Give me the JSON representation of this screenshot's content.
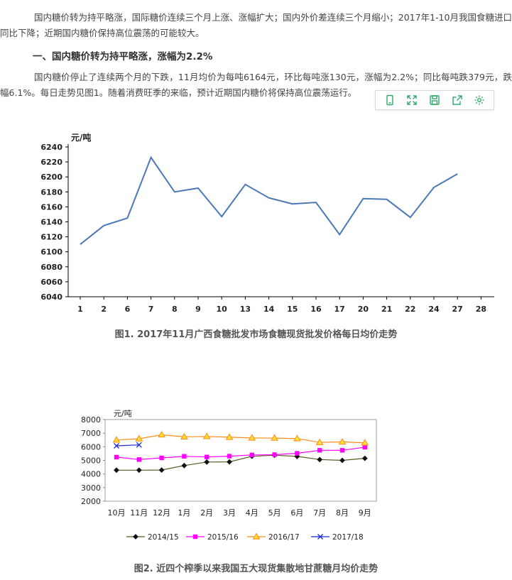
{
  "paragraphs": {
    "p1": "国内糖价转为持平略涨，国际糖价连续三个月上涨、涨幅扩大；国内外价差连续三个月缩小；2017年1-10月我国食糖进口同比下降；近期国内糖价保持高位震荡的可能较大。",
    "heading": "一、国内糖价转为持平略涨，涨幅为2.2%",
    "p2": "国内糖价停止了连续两个月的下跌，11月均价为每吨6164元，环比每吨涨130元，涨幅为2.2%；同比每吨跌379元，跌幅6.1%。每日走势见图1。随着消费旺季的来临，预计近期国内糖价将保持高位震荡运行。"
  },
  "toolbar": {
    "icons": [
      "phone-icon",
      "expand-icon",
      "save-icon",
      "share-icon",
      "settings-icon"
    ],
    "color": "#2eaa6a"
  },
  "captions": {
    "fig1": "图1. 2017年11月广西食糖批发市场食糖现货批发价格每日均价走势",
    "fig2": "图2. 近四个榨季以来我国五大现货集散地甘蔗糖月均价走势"
  },
  "chart_data": [
    {
      "type": "line",
      "title": "",
      "ylabel": "元/吨",
      "xlabel": "",
      "categories": [
        "1",
        "2",
        "6",
        "7",
        "8",
        "9",
        "10",
        "13",
        "14",
        "15",
        "16",
        "17",
        "20",
        "21",
        "22",
        "24",
        "27",
        "28"
      ],
      "series": [
        {
          "values": [
            6110,
            6135,
            6145,
            6226,
            6180,
            6185,
            6147,
            6190,
            6172,
            6164,
            6166,
            6123,
            6171,
            6170,
            6146,
            6186,
            6204,
            null
          ],
          "color": "#4a78b8"
        }
      ],
      "ylim": [
        6040,
        6240
      ],
      "yticks": [
        "6240",
        "6220",
        "6200",
        "6180",
        "6160",
        "6140",
        "6120",
        "6100",
        "6080",
        "6060",
        "6040"
      ],
      "grid": false,
      "legend": "none"
    },
    {
      "type": "line",
      "title": "",
      "ylabel": "元/吨",
      "xlabel": "",
      "categories": [
        "10月",
        "11月",
        "12月",
        "1月",
        "2月",
        "3月",
        "4月",
        "5月",
        "6月",
        "7月",
        "8月",
        "9月"
      ],
      "series": [
        {
          "name": "2014/15",
          "color": "#5a5a1e",
          "marker": "diamond",
          "values": [
            4280,
            4280,
            4290,
            4620,
            4880,
            4890,
            5300,
            5380,
            5290,
            5060,
            5000,
            5150
          ]
        },
        {
          "name": "2015/16",
          "color": "#ff00ff",
          "marker": "square",
          "values": [
            5240,
            5060,
            5180,
            5300,
            5250,
            5310,
            5400,
            5420,
            5520,
            5740,
            5740,
            5970
          ]
        },
        {
          "name": "2016/17",
          "color": "#ff8c1a",
          "marker": "triangle",
          "values": [
            6500,
            6590,
            6880,
            6730,
            6760,
            6700,
            6650,
            6640,
            6600,
            6320,
            6360,
            6290
          ]
        },
        {
          "name": "2017/18",
          "color": "#1a2ad8",
          "marker": "x",
          "values": [
            6070,
            6140,
            null,
            null,
            null,
            null,
            null,
            null,
            null,
            null,
            null,
            null
          ]
        }
      ],
      "ylim": [
        2000,
        8000
      ],
      "yticks": [
        "8000",
        "7000",
        "6000",
        "5000",
        "4000",
        "3000",
        "2000"
      ],
      "grid": false,
      "legend": "bottom"
    }
  ]
}
